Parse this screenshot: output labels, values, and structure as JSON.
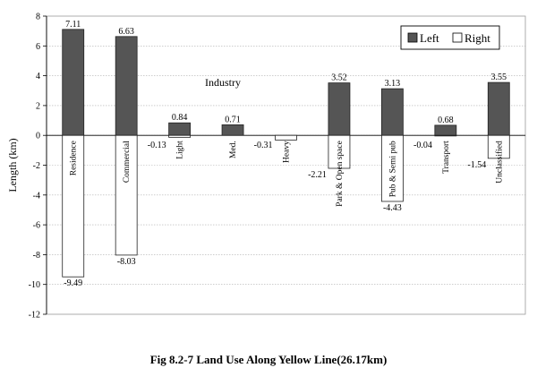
{
  "chart_data": {
    "type": "bar",
    "title": "",
    "ylabel": "Length (km)",
    "xlabel": "",
    "ylim": [
      -12,
      8
    ],
    "yticks": [
      8,
      6,
      4,
      2,
      0,
      -2,
      -4,
      -6,
      -8,
      -10,
      -12
    ],
    "grid": true,
    "legend_position": "top-right",
    "group_annotation": "Industry",
    "categories": [
      "Residence",
      "Commercial",
      "Light",
      "Med.",
      "Heavy",
      "Park & Open space",
      "Pub & Semi pub",
      "Transport",
      "Unclassified"
    ],
    "series": [
      {
        "name": "Left",
        "color": "#555555",
        "values": [
          7.11,
          6.63,
          0.84,
          0.71,
          0,
          3.52,
          3.13,
          0.68,
          3.55
        ],
        "labels": [
          "7.11",
          "6.63",
          "0.84",
          "0.71",
          "",
          "3.52",
          "3.13",
          "0.68",
          "3.55"
        ]
      },
      {
        "name": "Right",
        "color": "#ffffff",
        "values": [
          -9.49,
          -8.03,
          -0.13,
          0,
          -0.31,
          -2.21,
          -4.43,
          -0.04,
          -1.54
        ],
        "labels": [
          "-9.49",
          "-8.03",
          "-0.13",
          "",
          "-0.31",
          "-2.21",
          "-4.43",
          "-0.04",
          "-1.54"
        ]
      }
    ]
  },
  "caption": "Fig 8.2-7 Land Use Along Yellow Line(26.17km)"
}
